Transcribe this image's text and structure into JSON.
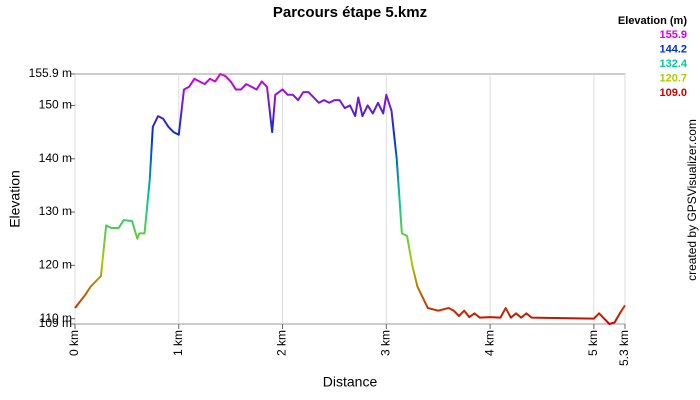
{
  "chart_data": {
    "type": "line",
    "title": "Parcours étape 5.kmz",
    "x_label": "Distance",
    "y_label": "Elevation",
    "credit": "created by GPSVisualizer.com",
    "legend_title": "Elevation (m)",
    "legend_values": [
      155.9,
      144.2,
      132.4,
      120.7,
      {
        "value": 109,
        "label": "109.0"
      }
    ],
    "legend_colors": [
      "#dd00dd",
      "#0033cc",
      "#00cc99",
      "#aacc00",
      "#cc0000"
    ],
    "xlim": [
      0,
      5.3
    ],
    "ylim": [
      109,
      155.9
    ],
    "xticks": [
      {
        "value": 0,
        "label": "0 km"
      },
      {
        "value": 1,
        "label": "1 km"
      },
      {
        "value": 2,
        "label": "2 km"
      },
      {
        "value": 3,
        "label": "3 km"
      },
      {
        "value": 4,
        "label": "4 km"
      },
      {
        "value": 5,
        "label": "5 km"
      },
      {
        "value": 5.3,
        "label": "5.3 km"
      }
    ],
    "yticks": [
      {
        "value": 109,
        "label": "109 m"
      },
      {
        "value": 110,
        "label": "110 m"
      },
      {
        "value": 120,
        "label": "120 m"
      },
      {
        "value": 130,
        "label": "130 m"
      },
      {
        "value": 140,
        "label": "140 m"
      },
      {
        "value": 150,
        "label": "150 m"
      },
      {
        "value": 155.9,
        "label": "155.9 m"
      }
    ],
    "grid": "x",
    "x": [
      0,
      0.1,
      0.15,
      0.25,
      0.3,
      0.35,
      0.42,
      0.47,
      0.55,
      0.6,
      0.62,
      0.67,
      0.72,
      0.75,
      0.8,
      0.85,
      0.9,
      0.95,
      1.0,
      1.05,
      1.1,
      1.15,
      1.2,
      1.25,
      1.3,
      1.35,
      1.4,
      1.45,
      1.5,
      1.55,
      1.6,
      1.65,
      1.7,
      1.75,
      1.8,
      1.85,
      1.9,
      1.93,
      2.0,
      2.05,
      2.1,
      2.15,
      2.2,
      2.25,
      2.3,
      2.35,
      2.4,
      2.45,
      2.5,
      2.55,
      2.6,
      2.65,
      2.7,
      2.73,
      2.77,
      2.82,
      2.87,
      2.92,
      2.97,
      3.0,
      3.05,
      3.1,
      3.15,
      3.2,
      3.25,
      3.3,
      3.35,
      3.4,
      3.5,
      3.6,
      3.65,
      3.7,
      3.75,
      3.8,
      3.85,
      3.9,
      4.0,
      4.1,
      4.15,
      4.2,
      4.25,
      4.3,
      4.35,
      4.4,
      5.0,
      5.05,
      5.1,
      5.15,
      5.2,
      5.25,
      5.3
    ],
    "values": [
      112,
      114.5,
      116,
      118,
      127.5,
      127,
      127,
      128.5,
      128.3,
      125,
      126,
      126,
      136,
      146,
      148,
      147.5,
      146,
      145,
      144.5,
      153,
      153.5,
      155,
      154.5,
      154,
      155,
      154.5,
      155.9,
      155.5,
      154.5,
      153,
      153,
      154,
      153.5,
      153,
      154.5,
      153.5,
      145,
      152,
      153,
      152,
      152,
      151,
      152.5,
      152.5,
      151.5,
      150.5,
      151,
      150.5,
      151,
      151,
      149.5,
      150,
      148,
      151.5,
      148,
      150,
      148.5,
      150.5,
      148.5,
      152,
      149,
      140,
      126,
      125.5,
      120,
      116,
      114,
      112,
      111.5,
      112,
      111.5,
      110.5,
      111.5,
      110.3,
      111,
      110.2,
      110.3,
      110.2,
      112,
      110.2,
      111,
      110.2,
      111,
      110.2,
      110,
      111,
      110,
      109,
      109.3,
      111,
      112.5
    ]
  }
}
